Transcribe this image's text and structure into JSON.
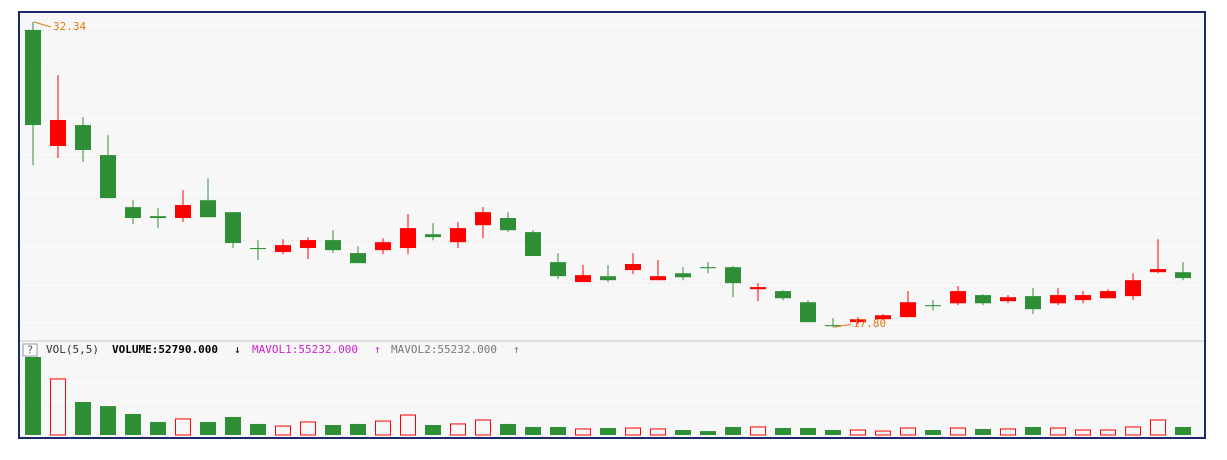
{
  "chart_data": [
    {
      "type": "candlestick",
      "up_color": "#ff0000",
      "down_color": "#2f8f37",
      "ylim": [
        17.5,
        32.5
      ],
      "open": [
        31.96,
        26.43,
        27.43,
        26.0,
        23.52,
        23.09,
        23.0,
        23.85,
        23.28,
        21.57,
        21.38,
        21.57,
        21.95,
        21.33,
        21.47,
        21.57,
        22.23,
        21.85,
        22.66,
        23.0,
        22.33,
        20.9,
        19.95,
        20.23,
        20.52,
        20.04,
        20.37,
        20.66,
        20.66,
        19.61,
        19.52,
        18.99,
        17.9,
        18.04,
        18.18,
        18.28,
        18.85,
        18.94,
        19.33,
        19.04,
        19.28,
        18.94,
        19.09,
        19.18,
        19.28,
        20.42,
        20.42
      ],
      "high": [
        32.34,
        29.81,
        27.81,
        26.95,
        23.85,
        23.47,
        24.33,
        24.9,
        23.28,
        21.95,
        21.99,
        22.09,
        22.42,
        21.66,
        22.04,
        23.19,
        22.76,
        22.81,
        23.52,
        23.28,
        22.42,
        21.33,
        20.76,
        20.76,
        21.33,
        21.0,
        20.66,
        20.9,
        20.71,
        19.9,
        19.56,
        19.09,
        18.23,
        18.28,
        18.42,
        19.52,
        19.09,
        19.76,
        19.37,
        19.33,
        19.66,
        19.66,
        19.52,
        19.61,
        20.37,
        21.99,
        20.9
      ],
      "low": [
        25.52,
        25.86,
        25.67,
        23.95,
        22.71,
        22.52,
        22.81,
        23.04,
        21.57,
        21.0,
        21.28,
        21.04,
        21.33,
        20.85,
        21.28,
        21.28,
        21.95,
        21.57,
        22.04,
        22.33,
        21.19,
        20.09,
        19.95,
        19.95,
        20.33,
        20.04,
        20.04,
        20.37,
        19.23,
        19.04,
        19.09,
        18.04,
        17.8,
        17.94,
        18.13,
        18.28,
        18.61,
        18.85,
        18.85,
        18.94,
        18.42,
        18.85,
        18.94,
        19.18,
        19.09,
        20.37,
        20.04
      ],
      "close": [
        27.43,
        27.67,
        26.24,
        23.95,
        23.0,
        23.0,
        23.62,
        23.04,
        21.81,
        21.52,
        21.71,
        21.95,
        21.47,
        20.85,
        21.85,
        22.52,
        22.09,
        22.52,
        23.28,
        22.42,
        21.19,
        20.23,
        20.28,
        20.04,
        20.81,
        20.23,
        20.18,
        20.61,
        19.9,
        19.71,
        19.18,
        18.04,
        17.85,
        18.18,
        18.37,
        18.99,
        18.8,
        19.52,
        18.94,
        19.23,
        18.66,
        19.33,
        19.33,
        19.52,
        20.04,
        20.57,
        20.14
      ],
      "annotations": [
        {
          "value": 32.34,
          "label": "32.34"
        },
        {
          "value": 17.8,
          "label": "17.80"
        }
      ],
      "annotation_color": "#e07a10"
    },
    {
      "type": "bar",
      "header": {
        "help": "?",
        "indicator": "VOL(5,5)",
        "volume": "VOLUME:52790.000",
        "volume_arrow": "↓",
        "mavol1": "MAVOL1:55232.000",
        "mavol1_arrow": "↑",
        "mavol2": "MAVOL2:55232.000",
        "mavol2_arrow": "↑"
      },
      "mavol1_color": "#d020d0",
      "mavol2_color": "#777777",
      "ylim": [
        0,
        550000
      ],
      "values": [
        515000,
        370000,
        218000,
        191000,
        139000,
        86000,
        106000,
        86000,
        119000,
        73000,
        59000,
        86000,
        66000,
        73000,
        92000,
        132000,
        66000,
        73000,
        99000,
        73000,
        53000,
        53000,
        40000,
        46000,
        46000,
        40000,
        33000,
        26000,
        53000,
        53000,
        46000,
        46000,
        33000,
        33000,
        26000,
        46000,
        33000,
        46000,
        40000,
        40000,
        53000,
        46000,
        33000,
        33000,
        53000,
        99000,
        52790
      ]
    }
  ]
}
